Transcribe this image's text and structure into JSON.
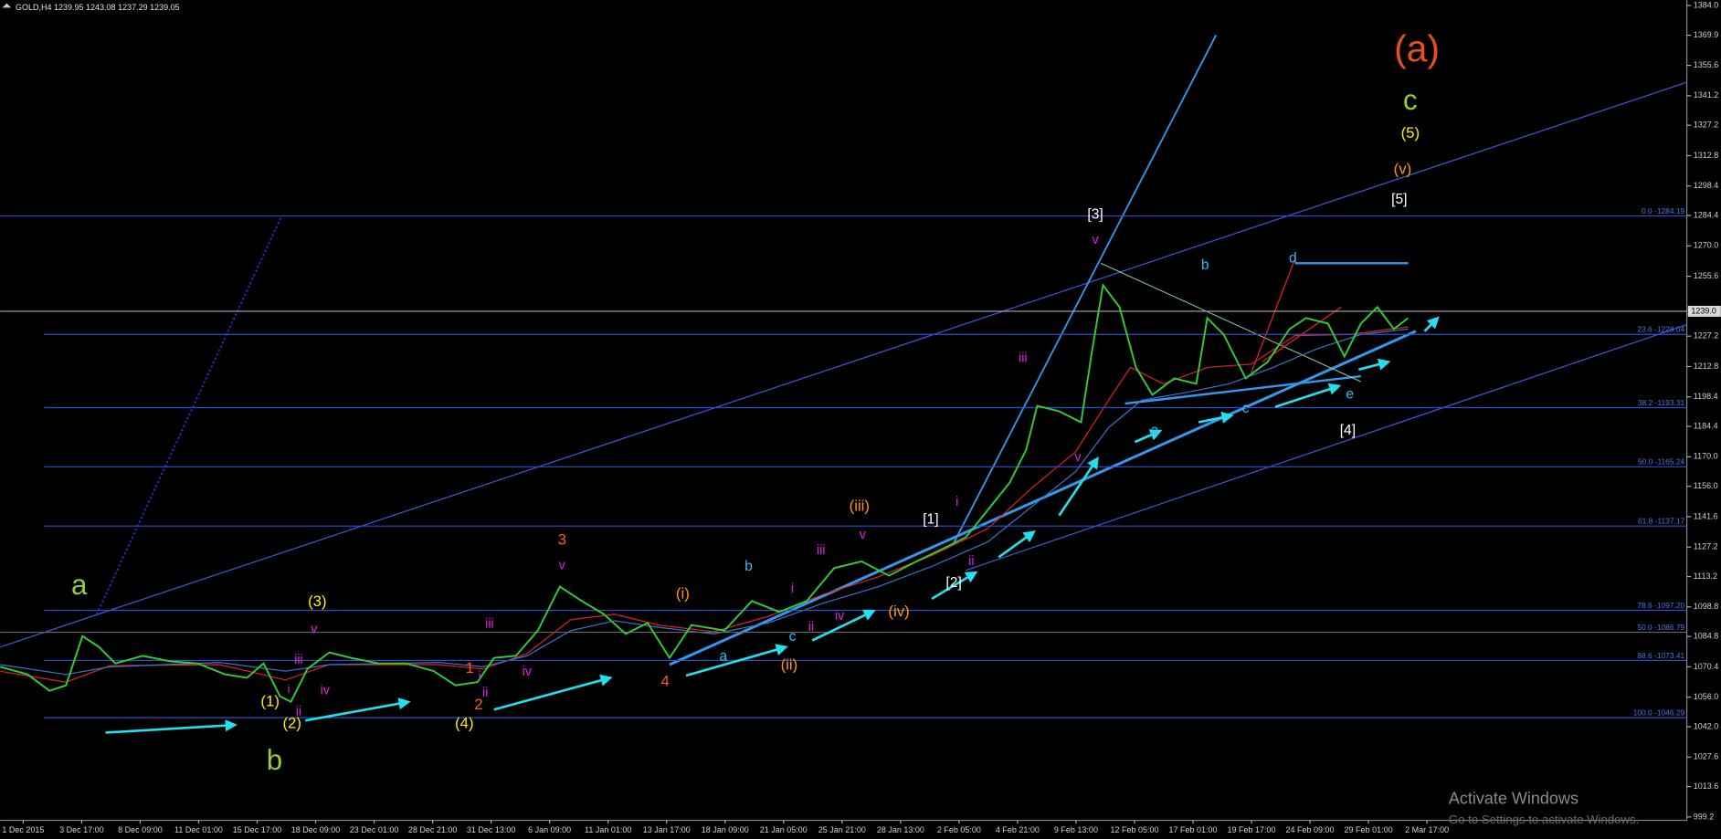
{
  "header": "GOLD,H4  1239.95 1243.08 1237.29 1239.05",
  "chart_data": {
    "type": "line",
    "color": "#33cc33",
    "values": [
      1070.4,
      1066.8,
      1059.0,
      1061.6,
      1085.0,
      1079.8,
      1072.0,
      1075.6,
      1073.0,
      1072.0,
      1066.8,
      1065.2,
      1072.0,
      1056.4,
      1053.8,
      1069.4,
      1077.2,
      1074.6,
      1072.0,
      1072.0,
      1068.4,
      1061.6,
      1063.2,
      1074.6,
      1075.6,
      1087.6,
      1108.4,
      1101.6,
      1095.4,
      1086.0,
      1091.2,
      1074.6,
      1090.2,
      1087.6,
      1101.6,
      1096.4,
      1101.6,
      1117.2,
      1120.4,
      1113.6,
      1120.4,
      1126.6,
      1131.8,
      1144.8,
      1157.8,
      1173.4,
      1194.2,
      1191.6,
      1186.4,
      1220.2,
      1251.4,
      1241.0,
      1212.4,
      1199.4,
      1207.2,
      1204.6,
      1235.8,
      1228.0,
      1207.2,
      1215.0,
      1230.6,
      1235.8,
      1233.2,
      1217.6,
      1233.2,
      1241.0,
      1230.6,
      1235.8
    ],
    "x_labels": [
      "1 Dec 2015",
      "3 Dec 17:00",
      "8 Dec 09:00",
      "11 Dec 01:00",
      "15 Dec 17:00",
      "18 Dec 09:00",
      "23 Dec 01:00",
      "28 Dec 21:00",
      "31 Dec 13:00",
      "6 Jan 09:00",
      "11 Jan 01:00",
      "13 Jan 17:00",
      "18 Jan 09:00",
      "21 Jan 05:00",
      "25 Jan 21:00",
      "28 Jan 13:00",
      "2 Feb 05:00",
      "4 Feb 21:00",
      "9 Feb 13:00",
      "12 Feb 05:00",
      "17 Feb 01:00",
      "19 Feb 17:00",
      "24 Feb 09:00",
      "29 Feb 01:00",
      "2 Mar 17:00"
    ],
    "ylim": [
      997.6,
      1386.6
    ],
    "yticks": [
      {
        "value": 1384.0,
        "label": "1384.0"
      },
      {
        "value": 1369.9,
        "label": "1369.9"
      },
      {
        "value": 1355.6,
        "label": "1355.6"
      },
      {
        "value": 1341.2,
        "label": "1341.2"
      },
      {
        "value": 1327.2,
        "label": "1327.2"
      },
      {
        "value": 1312.8,
        "label": "1312.8"
      },
      {
        "value": 1298.4,
        "label": "1298.4"
      },
      {
        "value": 1284.4,
        "label": "1284.4"
      },
      {
        "value": 1270.0,
        "label": "1270.0"
      },
      {
        "value": 1255.6,
        "label": "1255.6"
      },
      {
        "value": 1227.2,
        "label": "1227.2"
      },
      {
        "value": 1212.8,
        "label": "1212.8"
      },
      {
        "value": 1198.4,
        "label": "1198.4"
      },
      {
        "value": 1184.4,
        "label": "1184.4"
      },
      {
        "value": 1170.0,
        "label": "1170.0"
      },
      {
        "value": 1156.0,
        "label": "1156.0"
      },
      {
        "value": 1141.6,
        "label": "1141.6"
      },
      {
        "value": 1127.2,
        "label": "1127.2"
      },
      {
        "value": 1113.2,
        "label": "1113.2"
      },
      {
        "value": 1098.8,
        "label": "1098.8"
      },
      {
        "value": 1084.8,
        "label": "1084.8"
      },
      {
        "value": 1070.4,
        "label": "1070.4"
      },
      {
        "value": 1056.0,
        "label": "1056.0"
      },
      {
        "value": 1042.0,
        "label": "1042.0"
      },
      {
        "value": 1027.6,
        "label": "1027.6"
      },
      {
        "value": 1013.6,
        "label": "1013.6"
      },
      {
        "value": 999.2,
        "label": "999.2"
      }
    ],
    "current_price": {
      "value": 1239.0,
      "label": "1239.0"
    },
    "fib_levels": [
      {
        "value": 1284.19,
        "label": "0.0 -1284.19"
      },
      {
        "value": 1228.04,
        "label": "23.6 -1228.04"
      },
      {
        "value": 1193.31,
        "label": "38.2 -1193.31"
      },
      {
        "value": 1165.24,
        "label": "50.0 -1165.24"
      },
      {
        "value": 1137.17,
        "label": "61.8 -1137.17"
      },
      {
        "value": 1097.2,
        "label": "78.6 -1097.20"
      },
      {
        "value": 1086.79,
        "label": "50.0 -1086.79"
      },
      {
        "value": 1073.41,
        "label": "88.6 -1073.41"
      },
      {
        "value": 1046.29,
        "label": "100.0 -1046.29"
      }
    ],
    "annotations": [
      {
        "text": "a",
        "color": "#99cc33"
      },
      {
        "text": "b",
        "color": "#99cc33"
      },
      {
        "text": "(a)",
        "color": "#e8501a"
      },
      {
        "text": "c",
        "color": "#99cc33"
      },
      {
        "text": "(5)",
        "color": "#ffee00"
      },
      {
        "text": "(v)",
        "color": "#ff9900"
      },
      {
        "text": "[5]",
        "color": "#ffffff"
      },
      {
        "text": "[3]",
        "color": "#ffffff"
      },
      {
        "text": "v",
        "color": "#dd22dd"
      },
      {
        "text": "d",
        "color": "#33bbff"
      },
      {
        "text": "b",
        "color": "#33bbff"
      },
      {
        "text": "iii",
        "color": "#dd22dd"
      },
      {
        "text": "a",
        "color": "#33bbff"
      },
      {
        "text": "c",
        "color": "#33bbff"
      },
      {
        "text": "e",
        "color": "#33bbff"
      },
      {
        "text": "[4]",
        "color": "#ffffff"
      },
      {
        "text": "v",
        "color": "#dd22dd"
      },
      {
        "text": "i",
        "color": "#dd22dd"
      },
      {
        "text": "[1]",
        "color": "#ffffff"
      },
      {
        "text": "(iii)",
        "color": "#ff9900"
      },
      {
        "text": "v",
        "color": "#dd22dd"
      },
      {
        "text": "iii",
        "color": "#dd22dd"
      },
      {
        "text": "3",
        "color": "#ff5522"
      },
      {
        "text": "v",
        "color": "#dd22dd"
      },
      {
        "text": "b",
        "color": "#33bbff"
      },
      {
        "text": "ii",
        "color": "#dd22dd"
      },
      {
        "text": "[2]",
        "color": "#ffffff"
      },
      {
        "text": "i",
        "color": "#dd22dd"
      },
      {
        "text": "(i)",
        "color": "#ff9900"
      },
      {
        "text": "(3)",
        "color": "#ffee00"
      },
      {
        "text": "v",
        "color": "#dd22dd"
      },
      {
        "text": "iii",
        "color": "#dd22dd"
      },
      {
        "text": "(iv)",
        "color": "#ff9900"
      },
      {
        "text": "iv",
        "color": "#dd22dd"
      },
      {
        "text": "ii",
        "color": "#dd22dd"
      },
      {
        "text": "c",
        "color": "#33bbff"
      },
      {
        "text": "a",
        "color": "#33bbff"
      },
      {
        "text": "(ii)",
        "color": "#ff9900"
      },
      {
        "text": "iv",
        "color": "#dd22dd"
      },
      {
        "text": "1",
        "color": "#ff5522"
      },
      {
        "text": "i",
        "color": "#dd22dd"
      },
      {
        "text": "ii",
        "color": "#dd22dd"
      },
      {
        "text": "2",
        "color": "#ff5522"
      },
      {
        "text": "4",
        "color": "#ff5522"
      },
      {
        "text": "iii",
        "color": "#dd22dd"
      },
      {
        "text": "iv",
        "color": "#dd22dd"
      },
      {
        "text": "i",
        "color": "#dd22dd"
      },
      {
        "text": "(1)",
        "color": "#ffee00"
      },
      {
        "text": "ii",
        "color": "#dd22dd"
      },
      {
        "text": "(2)",
        "color": "#ffee00"
      },
      {
        "text": "(4)",
        "color": "#ffee00"
      }
    ],
    "watermark": [
      "Activate Windows",
      "Go to Settings to activate Windows."
    ]
  }
}
